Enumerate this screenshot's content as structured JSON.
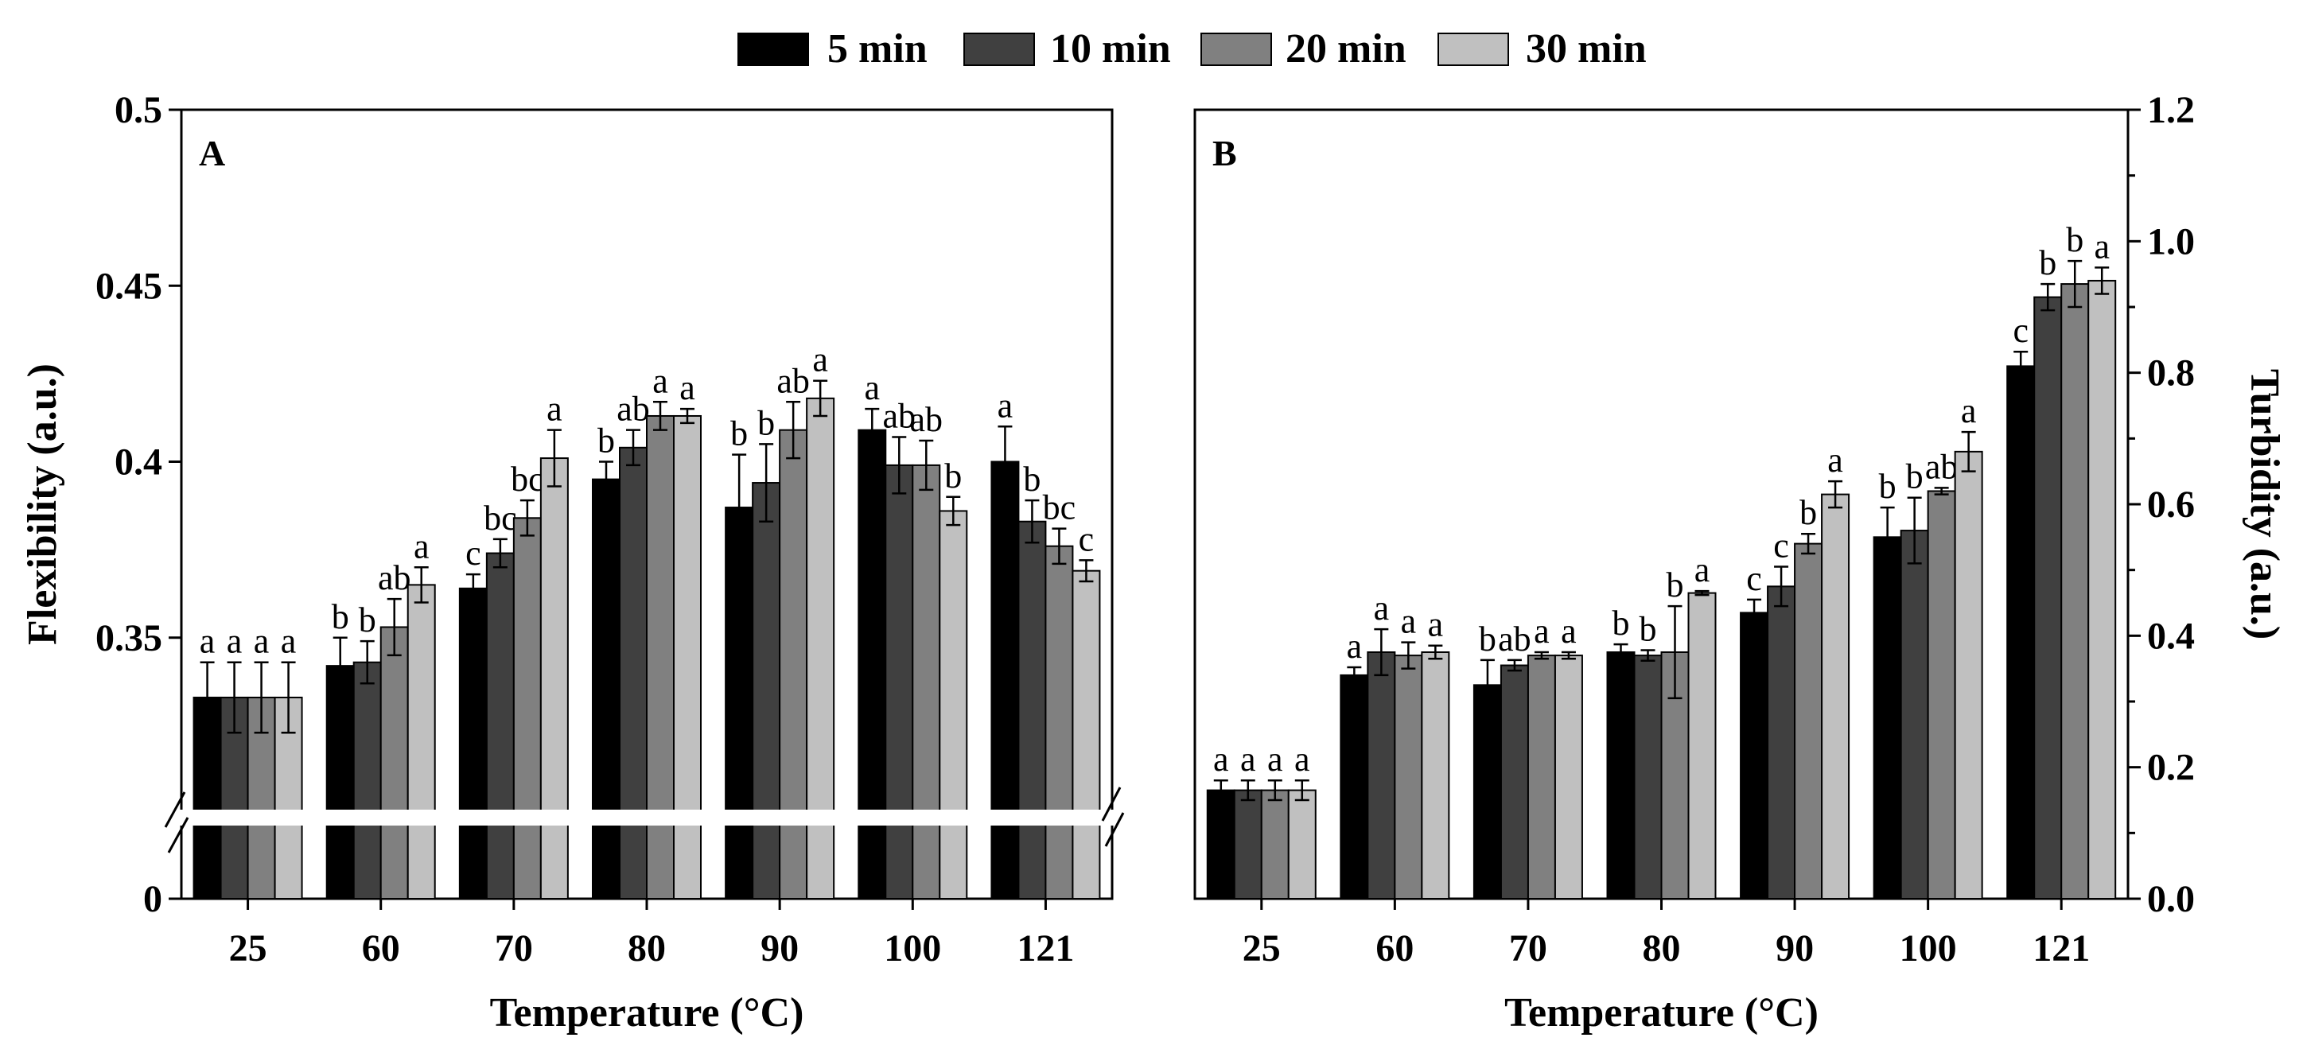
{
  "legend": [
    {
      "label": "5 min",
      "color": "#000000"
    },
    {
      "label": "10 min",
      "color": "#404040"
    },
    {
      "label": "20 min",
      "color": "#808080"
    },
    {
      "label": "30 min",
      "color": "#c0c0c0"
    }
  ],
  "chart_data": [
    {
      "type": "bar",
      "panel": "A",
      "xlabel": "Temperature (°C)",
      "ylabel": "Flexibility (a.u.)",
      "categories": [
        "25",
        "60",
        "70",
        "80",
        "90",
        "100",
        "121"
      ],
      "ylim": [
        0.3,
        0.5
      ],
      "yticks": [
        "0",
        "0.35",
        "0.4",
        "0.45",
        "0.5"
      ],
      "axis_break": true,
      "series": [
        {
          "name": "5 min",
          "values": [
            0.333,
            0.342,
            0.364,
            0.395,
            0.387,
            0.409,
            0.4
          ],
          "errors": [
            0.01,
            0.008,
            0.004,
            0.005,
            0.015,
            0.006,
            0.01
          ],
          "letters": [
            "a",
            "b",
            "c",
            "b",
            "b",
            "a",
            "a"
          ]
        },
        {
          "name": "10 min",
          "values": [
            0.333,
            0.343,
            0.374,
            0.404,
            0.394,
            0.399,
            0.383
          ],
          "errors": [
            0.01,
            0.006,
            0.004,
            0.005,
            0.011,
            0.008,
            0.006
          ],
          "letters": [
            "a",
            "b",
            "bc",
            "ab",
            "b",
            "ab",
            "b"
          ]
        },
        {
          "name": "20 min",
          "values": [
            0.333,
            0.353,
            0.384,
            0.413,
            0.409,
            0.399,
            0.376
          ],
          "errors": [
            0.01,
            0.008,
            0.005,
            0.004,
            0.008,
            0.007,
            0.005
          ],
          "letters": [
            "a",
            "ab",
            "bc",
            "a",
            "ab",
            "ab",
            "bc"
          ]
        },
        {
          "name": "30 min",
          "values": [
            0.333,
            0.365,
            0.401,
            0.413,
            0.418,
            0.386,
            0.369
          ],
          "errors": [
            0.01,
            0.005,
            0.008,
            0.002,
            0.005,
            0.004,
            0.003
          ],
          "letters": [
            "a",
            "a",
            "a",
            "a",
            "a",
            "b",
            "c"
          ]
        }
      ]
    },
    {
      "type": "bar",
      "panel": "B",
      "xlabel": "Temperature (°C)",
      "ylabel": "Turbidity (a.u.)",
      "categories": [
        "25",
        "60",
        "70",
        "80",
        "90",
        "100",
        "121"
      ],
      "ylim": [
        0.0,
        1.2
      ],
      "yticks": [
        "0.0",
        "0.2",
        "0.4",
        "0.6",
        "0.8",
        "1.0",
        "1.2"
      ],
      "series": [
        {
          "name": "5 min",
          "values": [
            0.165,
            0.34,
            0.325,
            0.375,
            0.435,
            0.55,
            0.81
          ],
          "errors": [
            0.015,
            0.012,
            0.038,
            0.012,
            0.02,
            0.045,
            0.022
          ],
          "letters": [
            "a",
            "a",
            "b",
            "b",
            "c",
            "b",
            "c"
          ]
        },
        {
          "name": "10 min",
          "values": [
            0.165,
            0.375,
            0.355,
            0.37,
            0.475,
            0.56,
            0.915
          ],
          "errors": [
            0.015,
            0.035,
            0.008,
            0.008,
            0.03,
            0.05,
            0.02
          ],
          "letters": [
            "a",
            "a",
            "ab",
            "b",
            "c",
            "b",
            "b"
          ]
        },
        {
          "name": "20 min",
          "values": [
            0.165,
            0.37,
            0.37,
            0.375,
            0.54,
            0.62,
            0.935
          ],
          "errors": [
            0.015,
            0.02,
            0.005,
            0.07,
            0.015,
            0.005,
            0.035
          ],
          "letters": [
            "a",
            "a",
            "a",
            "b",
            "b",
            "ab",
            "b"
          ]
        },
        {
          "name": "30 min",
          "values": [
            0.165,
            0.375,
            0.37,
            0.465,
            0.615,
            0.68,
            0.94
          ],
          "errors": [
            0.015,
            0.01,
            0.005,
            0.003,
            0.02,
            0.03,
            0.02
          ],
          "letters": [
            "a",
            "a",
            "a",
            "a",
            "a",
            "a",
            "a"
          ]
        }
      ]
    }
  ]
}
